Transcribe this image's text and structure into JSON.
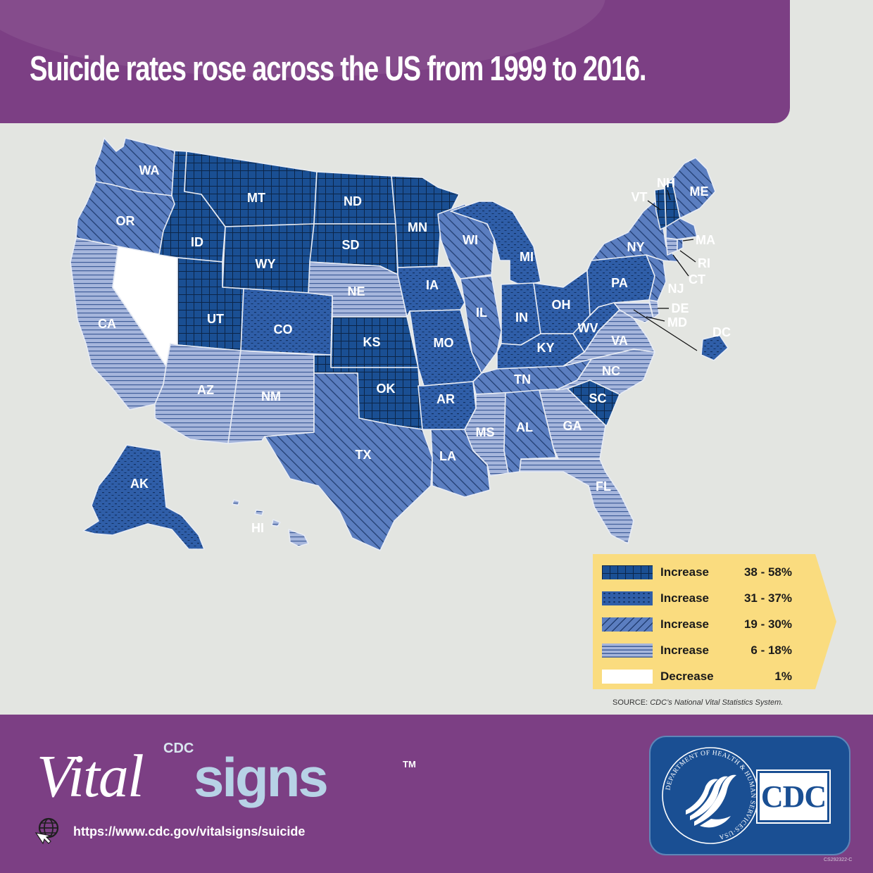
{
  "header": {
    "title": "Suicide rates rose across the US from 1999 to 2016."
  },
  "colors": {
    "purple": "#7c3f84",
    "navy": "#1a4f93",
    "steel": "#5b7ec0",
    "pale": "#a6b6dc",
    "legend_bg": "#fadc7f",
    "background": "#e3e5e1"
  },
  "legend": {
    "items": [
      {
        "label": "Increase",
        "range": "38 - 58%",
        "pattern": "grid"
      },
      {
        "label": "Increase",
        "range": "31 - 37%",
        "pattern": "dots"
      },
      {
        "label": "Increase",
        "range": "19 - 30%",
        "pattern": "diag"
      },
      {
        "label": "Increase",
        "range": "6 - 18%",
        "pattern": "horiz"
      },
      {
        "label": "Decrease",
        "range": "1%",
        "pattern": "white"
      }
    ]
  },
  "states": [
    {
      "abbr": "WA",
      "category": "19 - 30%"
    },
    {
      "abbr": "OR",
      "category": "19 - 30%"
    },
    {
      "abbr": "CA",
      "category": "6 - 18%"
    },
    {
      "abbr": "NV",
      "category": "1%"
    },
    {
      "abbr": "ID",
      "category": "38 - 58%"
    },
    {
      "abbr": "MT",
      "category": "38 - 58%"
    },
    {
      "abbr": "WY",
      "category": "38 - 58%"
    },
    {
      "abbr": "UT",
      "category": "38 - 58%"
    },
    {
      "abbr": "AZ",
      "category": "6 - 18%"
    },
    {
      "abbr": "NM",
      "category": "6 - 18%"
    },
    {
      "abbr": "CO",
      "category": "31 - 37%"
    },
    {
      "abbr": "ND",
      "category": "38 - 58%"
    },
    {
      "abbr": "SD",
      "category": "38 - 58%"
    },
    {
      "abbr": "NE",
      "category": "6 - 18%"
    },
    {
      "abbr": "KS",
      "category": "38 - 58%"
    },
    {
      "abbr": "OK",
      "category": "38 - 58%"
    },
    {
      "abbr": "TX",
      "category": "19 - 30%"
    },
    {
      "abbr": "MN",
      "category": "38 - 58%"
    },
    {
      "abbr": "IA",
      "category": "31 - 37%"
    },
    {
      "abbr": "MO",
      "category": "31 - 37%"
    },
    {
      "abbr": "AR",
      "category": "31 - 37%"
    },
    {
      "abbr": "LA",
      "category": "19 - 30%"
    },
    {
      "abbr": "WI",
      "category": "19 - 30%"
    },
    {
      "abbr": "IL",
      "category": "19 - 30%"
    },
    {
      "abbr": "MI",
      "category": "31 - 37%"
    },
    {
      "abbr": "IN",
      "category": "31 - 37%"
    },
    {
      "abbr": "OH",
      "category": "31 - 37%"
    },
    {
      "abbr": "KY",
      "category": "31 - 37%"
    },
    {
      "abbr": "TN",
      "category": "19 - 30%"
    },
    {
      "abbr": "MS",
      "category": "6 - 18%"
    },
    {
      "abbr": "AL",
      "category": "19 - 30%"
    },
    {
      "abbr": "GA",
      "category": "6 - 18%"
    },
    {
      "abbr": "FL",
      "category": "6 - 18%"
    },
    {
      "abbr": "SC",
      "category": "38 - 58%"
    },
    {
      "abbr": "NC",
      "category": "6 - 18%"
    },
    {
      "abbr": "VA",
      "category": "6 - 18%"
    },
    {
      "abbr": "WV",
      "category": "31 - 37%"
    },
    {
      "abbr": "PA",
      "category": "31 - 37%"
    },
    {
      "abbr": "NY",
      "category": "19 - 30%"
    },
    {
      "abbr": "VT",
      "category": "38 - 58%"
    },
    {
      "abbr": "NH",
      "category": "38 - 58%"
    },
    {
      "abbr": "ME",
      "category": "19 - 30%"
    },
    {
      "abbr": "MA",
      "category": "19 - 30%"
    },
    {
      "abbr": "RI",
      "category": "19 - 30%"
    },
    {
      "abbr": "CT",
      "category": "6 - 18%"
    },
    {
      "abbr": "NJ",
      "category": "19 - 30%"
    },
    {
      "abbr": "DE",
      "category": "6 - 18%"
    },
    {
      "abbr": "MD",
      "category": "6 - 18%"
    },
    {
      "abbr": "DC",
      "category": "31 - 37%"
    },
    {
      "abbr": "AK",
      "category": "31 - 37%"
    },
    {
      "abbr": "HI",
      "category": "6 - 18%"
    }
  ],
  "source": {
    "prefix": "SOURCE: ",
    "text": "CDC’s National Vital Statistics System."
  },
  "footer": {
    "brand_cdc": "CDC",
    "brand_vital": "Vital",
    "brand_signs": "signs",
    "brand_tm": "TM",
    "url": "https://www.cdc.gov/vitalsigns/suicide",
    "logo_text": "CDC",
    "seal_text": "DEPARTMENT OF HEALTH & HUMAN SERVICES·USA",
    "code": "CS292322-C"
  }
}
